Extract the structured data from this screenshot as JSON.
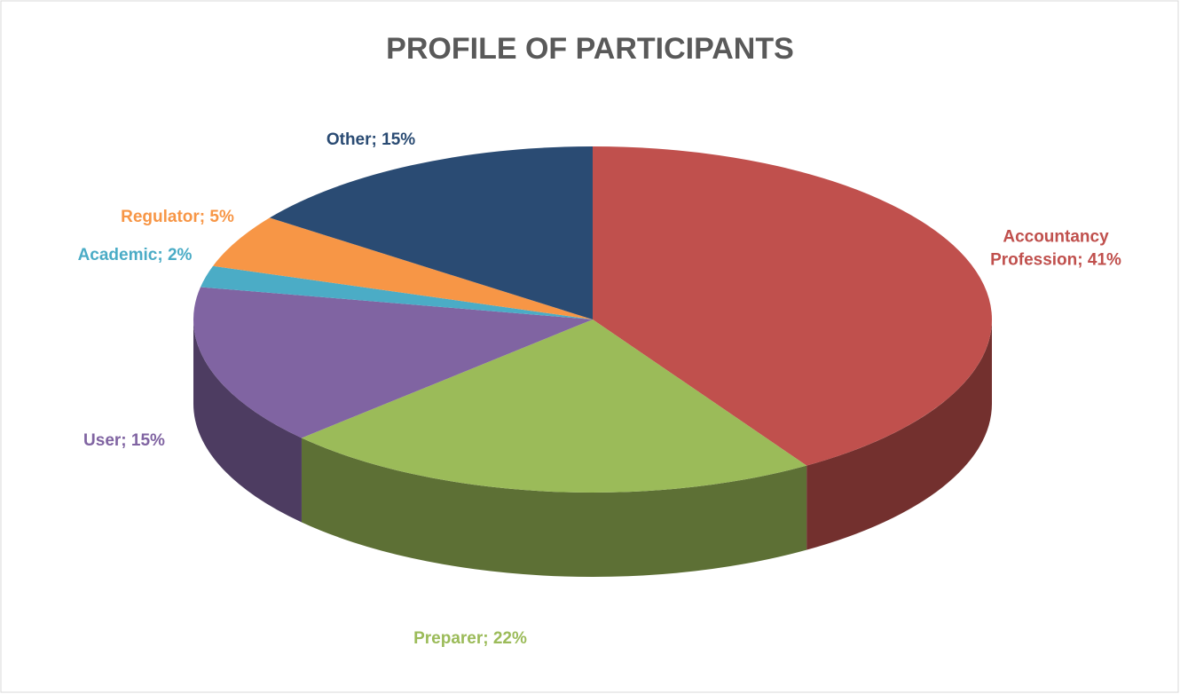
{
  "chart_data": {
    "type": "pie",
    "title": "PROFILE OF PARTICIPANTS",
    "values": [
      41,
      22,
      15,
      2,
      5,
      15
    ],
    "value_labels": [
      "Accountancy Profession; 41%",
      "Preparer; 22%",
      "User; 15%",
      "Academic; 2%",
      "Regulator; 5%",
      "Other; 15%"
    ],
    "colors": [
      "#c0504d",
      "#9bbb59",
      "#8064a2",
      "#4bacc6",
      "#f79646",
      "#2a4b73"
    ],
    "label_colors": [
      "#c0504d",
      "#9bbb59",
      "#8064a2",
      "#4bacc6",
      "#f79646",
      "#2a4b73"
    ]
  }
}
